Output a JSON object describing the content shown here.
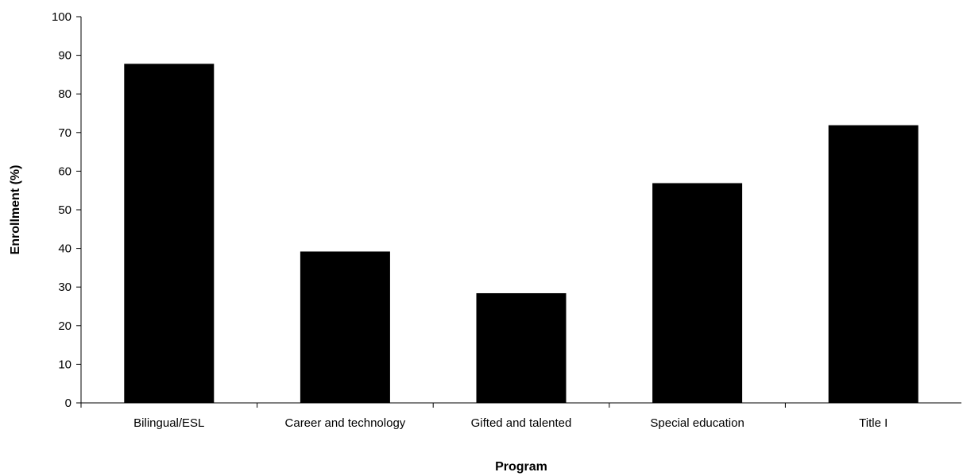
{
  "chart_data": {
    "type": "bar",
    "title": "",
    "xlabel": "Program",
    "ylabel": "Enrollment (%)",
    "categories": [
      "Bilingual/ESL",
      "Career and technology",
      "Gifted and talented",
      "Special education",
      "Title I"
    ],
    "values": [
      87.8,
      39.2,
      28.4,
      56.9,
      71.9
    ],
    "ylim": [
      0,
      100
    ],
    "yticks": [
      "0",
      "10",
      "20",
      "30",
      "40",
      "50",
      "60",
      "70",
      "80",
      "90",
      "100"
    ],
    "grid": false,
    "legend": "none",
    "bar_color": "#000000",
    "axis_color": "#000000"
  }
}
